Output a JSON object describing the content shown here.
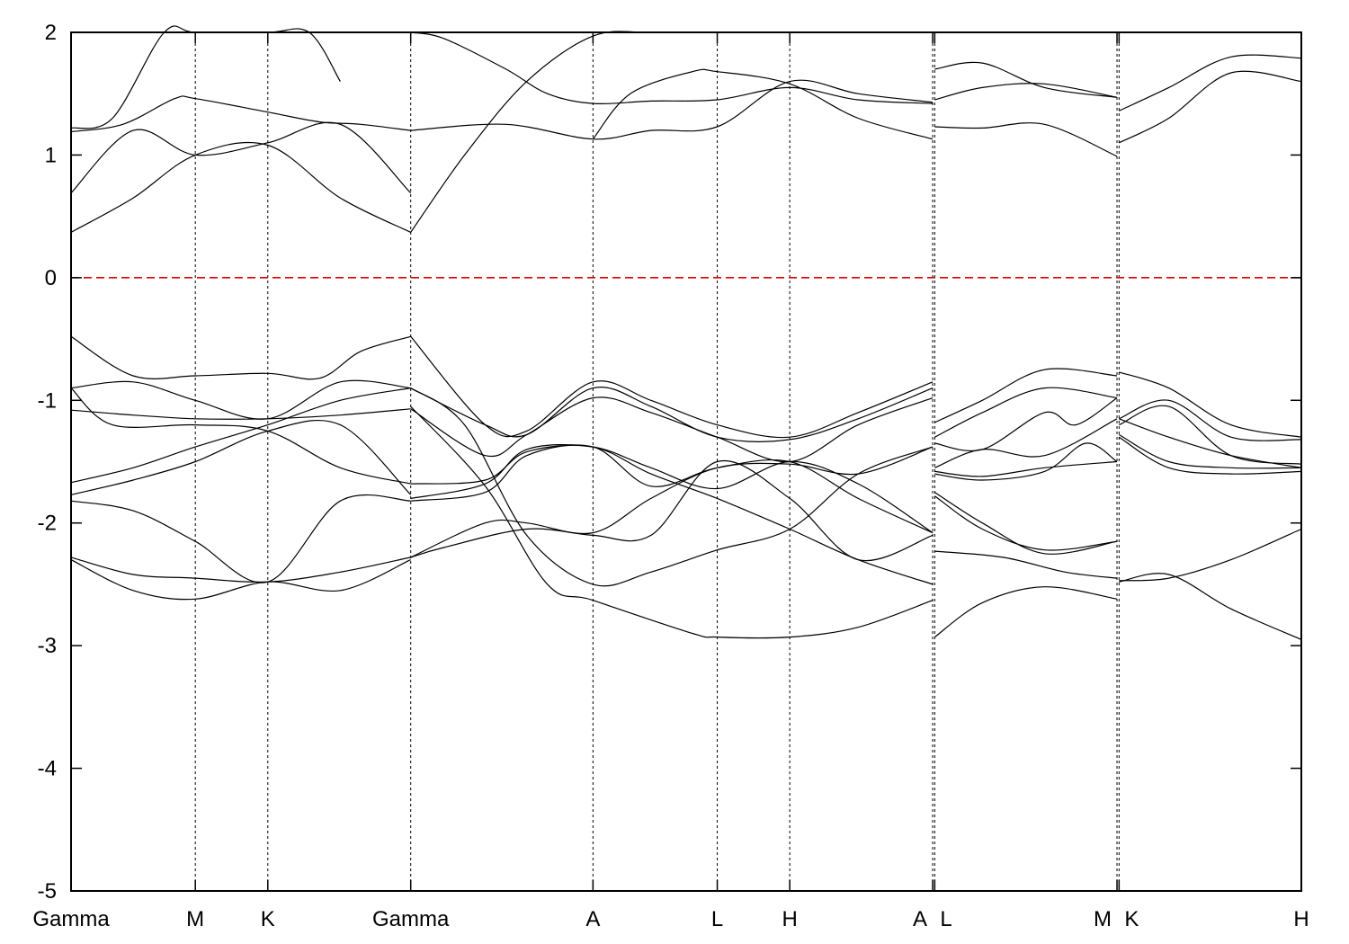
{
  "chart_data": {
    "type": "line",
    "title": "",
    "xlabel": "",
    "ylabel": "",
    "ylim": [
      -5,
      2
    ],
    "yticks": [
      2,
      1,
      0,
      -1,
      -2,
      -3,
      -4,
      -5
    ],
    "grid": false,
    "legend": "none",
    "fermi_level": 0,
    "fermi_line_color": "#dd0000",
    "band_color": "#000000",
    "kpoints": [
      {
        "label": "Gamma",
        "x": 0
      },
      {
        "label": "M",
        "x": 0.6
      },
      {
        "label": "K",
        "x": 0.95
      },
      {
        "label": "Gamma",
        "x": 1.64
      },
      {
        "label": "A",
        "x": 2.52
      },
      {
        "label": "L",
        "x": 3.12
      },
      {
        "label": "H",
        "x": 3.47
      },
      {
        "label": "A",
        "x": 4.16
      },
      {
        "label": "L",
        "x": 4.17
      },
      {
        "label": "M",
        "x": 5.05
      },
      {
        "label": "K",
        "x": 5.06
      },
      {
        "label": "H",
        "x": 5.94
      }
    ],
    "series": [
      {
        "x": [
          0,
          0.3,
          0.6,
          0.95,
          1.3,
          1.64
        ],
        "y": [
          0.37,
          0.65,
          1.0,
          1.08,
          0.65,
          0.37
        ]
      },
      {
        "x": [
          0,
          0.3,
          0.6,
          0.95,
          1.3,
          1.64
        ],
        "y": [
          0.69,
          1.2,
          1.0,
          1.1,
          1.25,
          0.69
        ]
      },
      {
        "x": [
          0,
          0.25,
          0.5,
          0.6,
          0.95,
          1.2,
          1.4,
          1.64
        ],
        "y": [
          1.19,
          1.25,
          1.46,
          1.46,
          1.35,
          1.27,
          1.25,
          1.2
        ]
      },
      {
        "x": [
          0,
          0.2,
          0.45,
          0.6,
          0.95,
          1.15,
          1.3
        ],
        "y": [
          1.22,
          1.3,
          2.0,
          2.0,
          2.0,
          2.0,
          1.6
        ]
      },
      {
        "x": [
          1.64,
          1.9,
          2.2,
          2.52,
          2.8,
          3.12,
          3.3
        ],
        "y": [
          0.37,
          1.0,
          1.6,
          1.97,
          2.0,
          2.0,
          2.0
        ]
      },
      {
        "x": [
          1.64,
          2.1,
          2.52,
          2.8,
          3.12,
          3.47,
          3.8,
          4.16
        ],
        "y": [
          1.2,
          1.25,
          1.13,
          1.2,
          1.23,
          1.6,
          1.5,
          1.43
        ]
      },
      {
        "x": [
          1.64,
          1.8,
          2.1,
          2.3,
          2.52,
          2.8,
          3.12,
          3.47,
          3.8,
          4.16
        ],
        "y": [
          2.0,
          1.95,
          1.7,
          1.5,
          1.42,
          1.44,
          1.45,
          1.55,
          1.45,
          1.42
        ]
      },
      {
        "x": [
          2.52,
          2.7,
          3.0,
          3.12,
          3.47,
          3.8,
          4.16
        ],
        "y": [
          1.13,
          1.5,
          1.68,
          1.68,
          1.58,
          1.3,
          1.13
        ]
      },
      {
        "x": [
          4.17,
          4.4,
          4.7,
          5.05
        ],
        "y": [
          1.23,
          1.22,
          1.25,
          0.99
        ]
      },
      {
        "x": [
          4.17,
          4.4,
          4.7,
          5.05
        ],
        "y": [
          1.45,
          1.55,
          1.58,
          1.47
        ]
      },
      {
        "x": [
          4.17,
          4.4,
          4.7,
          5.05
        ],
        "y": [
          1.7,
          1.75,
          1.55,
          1.47
        ]
      },
      {
        "x": [
          5.06,
          5.3,
          5.6,
          5.94
        ],
        "y": [
          1.1,
          1.3,
          1.67,
          1.6
        ]
      },
      {
        "x": [
          5.06,
          5.3,
          5.6,
          5.94
        ],
        "y": [
          1.36,
          1.55,
          1.8,
          1.79
        ]
      },
      {
        "x": [
          0,
          0.3,
          0.6,
          0.95,
          1.2,
          1.4,
          1.64
        ],
        "y": [
          -0.48,
          -0.8,
          -0.8,
          -0.78,
          -0.82,
          -0.6,
          -0.48
        ]
      },
      {
        "x": [
          0,
          0.3,
          0.6,
          0.95,
          1.3,
          1.64
        ],
        "y": [
          -0.9,
          -0.85,
          -1.0,
          -1.15,
          -0.85,
          -0.9
        ]
      },
      {
        "x": [
          0,
          0.3,
          0.6,
          0.95,
          1.3,
          1.64
        ],
        "y": [
          -1.08,
          -1.12,
          -1.15,
          -1.15,
          -1.12,
          -1.07
        ]
      },
      {
        "x": [
          0,
          0.2,
          0.6,
          0.95,
          1.3,
          1.64
        ],
        "y": [
          -0.9,
          -1.2,
          -1.2,
          -1.25,
          -1.55,
          -1.68
        ]
      },
      {
        "x": [
          0,
          0.3,
          0.6,
          0.95,
          1.3,
          1.64
        ],
        "y": [
          -1.67,
          -1.55,
          -1.38,
          -1.2,
          -1.0,
          -0.9
        ]
      },
      {
        "x": [
          0,
          0.3,
          0.6,
          0.95,
          1.3,
          1.64
        ],
        "y": [
          -1.77,
          -1.65,
          -1.5,
          -1.25,
          -1.2,
          -1.77
        ]
      },
      {
        "x": [
          0,
          0.3,
          0.6,
          0.95,
          1.3,
          1.64
        ],
        "y": [
          -1.82,
          -1.9,
          -2.15,
          -2.48,
          -1.82,
          -1.82
        ]
      },
      {
        "x": [
          0,
          0.3,
          0.6,
          0.95,
          1.3,
          1.64
        ],
        "y": [
          -2.28,
          -2.42,
          -2.45,
          -2.48,
          -2.4,
          -2.28
        ]
      },
      {
        "x": [
          0,
          0.3,
          0.6,
          0.95,
          1.3,
          1.64
        ],
        "y": [
          -2.3,
          -2.55,
          -2.62,
          -2.48,
          -2.55,
          -2.3
        ]
      },
      {
        "x": [
          1.64,
          2.0,
          2.2,
          2.52,
          2.8,
          3.12,
          3.47,
          3.8,
          4.16
        ],
        "y": [
          -0.48,
          -1.2,
          -1.25,
          -0.85,
          -1.0,
          -1.2,
          -1.3,
          -1.1,
          -0.85
        ]
      },
      {
        "x": [
          1.64,
          2.0,
          2.2,
          2.52,
          2.8,
          3.12,
          3.47,
          3.8,
          4.16
        ],
        "y": [
          -0.9,
          -1.2,
          -1.28,
          -0.9,
          -1.05,
          -1.3,
          -1.32,
          -1.15,
          -0.9
        ]
      },
      {
        "x": [
          1.64,
          2.0,
          2.2,
          2.52,
          2.8,
          3.12,
          3.47,
          3.8,
          4.16
        ],
        "y": [
          -1.07,
          -1.45,
          -1.28,
          -0.98,
          -1.1,
          -1.3,
          -1.5,
          -1.2,
          -0.98
        ]
      },
      {
        "x": [
          1.64,
          2.0,
          2.2,
          2.52,
          2.8,
          3.12,
          3.47,
          3.8,
          4.16
        ],
        "y": [
          -1.68,
          -1.65,
          -1.42,
          -1.38,
          -1.6,
          -1.8,
          -2.05,
          -2.3,
          -2.5
        ]
      },
      {
        "x": [
          1.64,
          2.0,
          2.2,
          2.52,
          2.8,
          3.12,
          3.47,
          3.8,
          4.16
        ],
        "y": [
          -1.8,
          -1.68,
          -1.4,
          -1.38,
          -1.55,
          -1.72,
          -1.5,
          -1.68,
          -2.08
        ]
      },
      {
        "x": [
          1.64,
          2.0,
          2.2,
          2.52,
          2.8,
          3.12,
          3.47,
          3.8,
          4.16
        ],
        "y": [
          -1.82,
          -1.75,
          -1.45,
          -1.38,
          -1.7,
          -1.55,
          -1.5,
          -1.8,
          -2.08
        ]
      },
      {
        "x": [
          1.64,
          2.0,
          2.2,
          2.52,
          2.8,
          3.12,
          3.47,
          3.8,
          4.16
        ],
        "y": [
          -2.28,
          -2.0,
          -2.0,
          -2.08,
          -1.8,
          -1.55,
          -1.52,
          -1.6,
          -1.38
        ]
      },
      {
        "x": [
          1.64,
          1.9,
          2.2,
          2.52,
          2.8,
          3.12,
          3.47,
          3.8,
          4.16
        ],
        "y": [
          -0.9,
          -1.2,
          -2.1,
          -2.5,
          -2.4,
          -2.22,
          -2.05,
          -1.6,
          -1.38
        ]
      },
      {
        "x": [
          1.64,
          1.8,
          2.2,
          2.52,
          2.8,
          3.12,
          3.47,
          3.8,
          4.16
        ],
        "y": [
          -2.28,
          -2.2,
          -2.05,
          -2.1,
          -2.1,
          -1.5,
          -1.8,
          -2.3,
          -2.1
        ]
      },
      {
        "x": [
          1.64,
          2.0,
          2.3,
          2.52,
          3.0,
          3.12,
          3.47,
          3.8,
          4.16
        ],
        "y": [
          -1.05,
          -1.7,
          -2.5,
          -2.63,
          -2.9,
          -2.93,
          -2.93,
          -2.85,
          -2.63
        ]
      },
      {
        "x": [
          4.17,
          4.4,
          4.7,
          5.05
        ],
        "y": [
          -1.18,
          -1.0,
          -0.75,
          -0.8
        ]
      },
      {
        "x": [
          4.17,
          4.4,
          4.7,
          5.05
        ],
        "y": [
          -1.3,
          -1.1,
          -0.9,
          -0.98
        ]
      },
      {
        "x": [
          4.17,
          4.4,
          4.7,
          4.85,
          5.05
        ],
        "y": [
          -1.35,
          -1.4,
          -1.1,
          -1.2,
          -0.98
        ]
      },
      {
        "x": [
          4.17,
          4.4,
          4.7,
          5.05
        ],
        "y": [
          -1.55,
          -1.4,
          -1.45,
          -1.15
        ]
      },
      {
        "x": [
          4.17,
          4.4,
          4.7,
          5.05
        ],
        "y": [
          -1.58,
          -1.62,
          -1.55,
          -1.5
        ]
      },
      {
        "x": [
          4.17,
          4.4,
          4.7,
          4.9,
          5.05
        ],
        "y": [
          -1.6,
          -1.65,
          -1.58,
          -1.35,
          -1.5
        ]
      },
      {
        "x": [
          4.17,
          4.4,
          4.7,
          5.05
        ],
        "y": [
          -1.75,
          -2.0,
          -2.25,
          -2.15
        ]
      },
      {
        "x": [
          4.17,
          4.4,
          4.7,
          5.05
        ],
        "y": [
          -1.78,
          -2.05,
          -2.22,
          -2.15
        ]
      },
      {
        "x": [
          4.17,
          4.5,
          4.8,
          5.05
        ],
        "y": [
          -2.23,
          -2.28,
          -2.4,
          -2.45
        ]
      },
      {
        "x": [
          4.17,
          4.4,
          4.7,
          5.05
        ],
        "y": [
          -2.93,
          -2.65,
          -2.52,
          -2.62
        ]
      },
      {
        "x": [
          5.06,
          5.3,
          5.6,
          5.94
        ],
        "y": [
          -0.77,
          -0.9,
          -1.2,
          -1.3
        ]
      },
      {
        "x": [
          5.06,
          5.3,
          5.6,
          5.94
        ],
        "y": [
          -1.15,
          -1.0,
          -1.3,
          -1.32
        ]
      },
      {
        "x": [
          5.06,
          5.3,
          5.6,
          5.94
        ],
        "y": [
          -1.2,
          -1.05,
          -1.45,
          -1.52
        ]
      },
      {
        "x": [
          5.06,
          5.3,
          5.6,
          5.94
        ],
        "y": [
          -1.28,
          -1.5,
          -1.55,
          -1.55
        ]
      },
      {
        "x": [
          5.06,
          5.3,
          5.6,
          5.94
        ],
        "y": [
          -1.3,
          -1.55,
          -1.6,
          -1.58
        ]
      },
      {
        "x": [
          5.06,
          5.3,
          5.6,
          5.94
        ],
        "y": [
          -1.15,
          -1.3,
          -1.45,
          -1.55
        ]
      },
      {
        "x": [
          5.06,
          5.3,
          5.6,
          5.94
        ],
        "y": [
          -2.47,
          -2.45,
          -2.3,
          -2.05
        ]
      },
      {
        "x": [
          5.06,
          5.3,
          5.6,
          5.94
        ],
        "y": [
          -2.48,
          -2.42,
          -2.7,
          -2.95
        ]
      }
    ]
  }
}
